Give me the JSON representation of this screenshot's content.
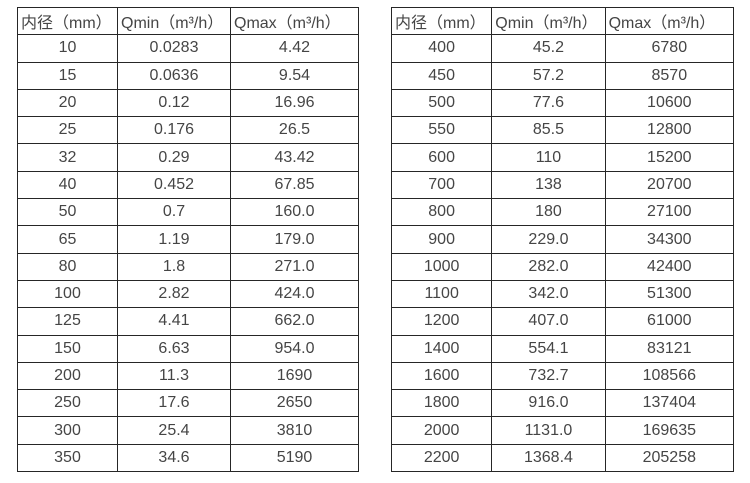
{
  "colors": {
    "background": "#ffffff",
    "border": "#262626",
    "text": "#454545"
  },
  "tables": [
    {
      "name": "flow-spec-table-small",
      "headers": [
        "内径（mm）",
        "Qmin（m³/h）",
        "Qmax（m³/h）"
      ],
      "rows": [
        [
          "10",
          "0.0283",
          "4.42"
        ],
        [
          "15",
          "0.0636",
          "9.54"
        ],
        [
          "20",
          "0.12",
          "16.96"
        ],
        [
          "25",
          "0.176",
          "26.5"
        ],
        [
          "32",
          "0.29",
          "43.42"
        ],
        [
          "40",
          "0.452",
          "67.85"
        ],
        [
          "50",
          "0.7",
          "160.0"
        ],
        [
          "65",
          "1.19",
          "179.0"
        ],
        [
          "80",
          "1.8",
          "271.0"
        ],
        [
          "100",
          "2.82",
          "424.0"
        ],
        [
          "125",
          "4.41",
          "662.0"
        ],
        [
          "150",
          "6.63",
          "954.0"
        ],
        [
          "200",
          "11.3",
          "1690"
        ],
        [
          "250",
          "17.6",
          "2650"
        ],
        [
          "300",
          "25.4",
          "3810"
        ],
        [
          "350",
          "34.6",
          "5190"
        ]
      ]
    },
    {
      "name": "flow-spec-table-large",
      "headers": [
        "内径（mm）",
        "Qmin（m³/h）",
        "Qmax（m³/h）"
      ],
      "rows": [
        [
          "400",
          "45.2",
          "6780"
        ],
        [
          "450",
          "57.2",
          "8570"
        ],
        [
          "500",
          "77.6",
          "10600"
        ],
        [
          "550",
          "85.5",
          "12800"
        ],
        [
          "600",
          "110",
          "15200"
        ],
        [
          "700",
          "138",
          "20700"
        ],
        [
          "800",
          "180",
          "27100"
        ],
        [
          "900",
          "229.0",
          "34300"
        ],
        [
          "1000",
          "282.0",
          "42400"
        ],
        [
          "1100",
          "342.0",
          "51300"
        ],
        [
          "1200",
          "407.0",
          "61000"
        ],
        [
          "1400",
          "554.1",
          "83121"
        ],
        [
          "1600",
          "732.7",
          "108566"
        ],
        [
          "1800",
          "916.0",
          "137404"
        ],
        [
          "2000",
          "1131.0",
          "169635"
        ],
        [
          "2200",
          "1368.4",
          "205258"
        ]
      ]
    }
  ]
}
